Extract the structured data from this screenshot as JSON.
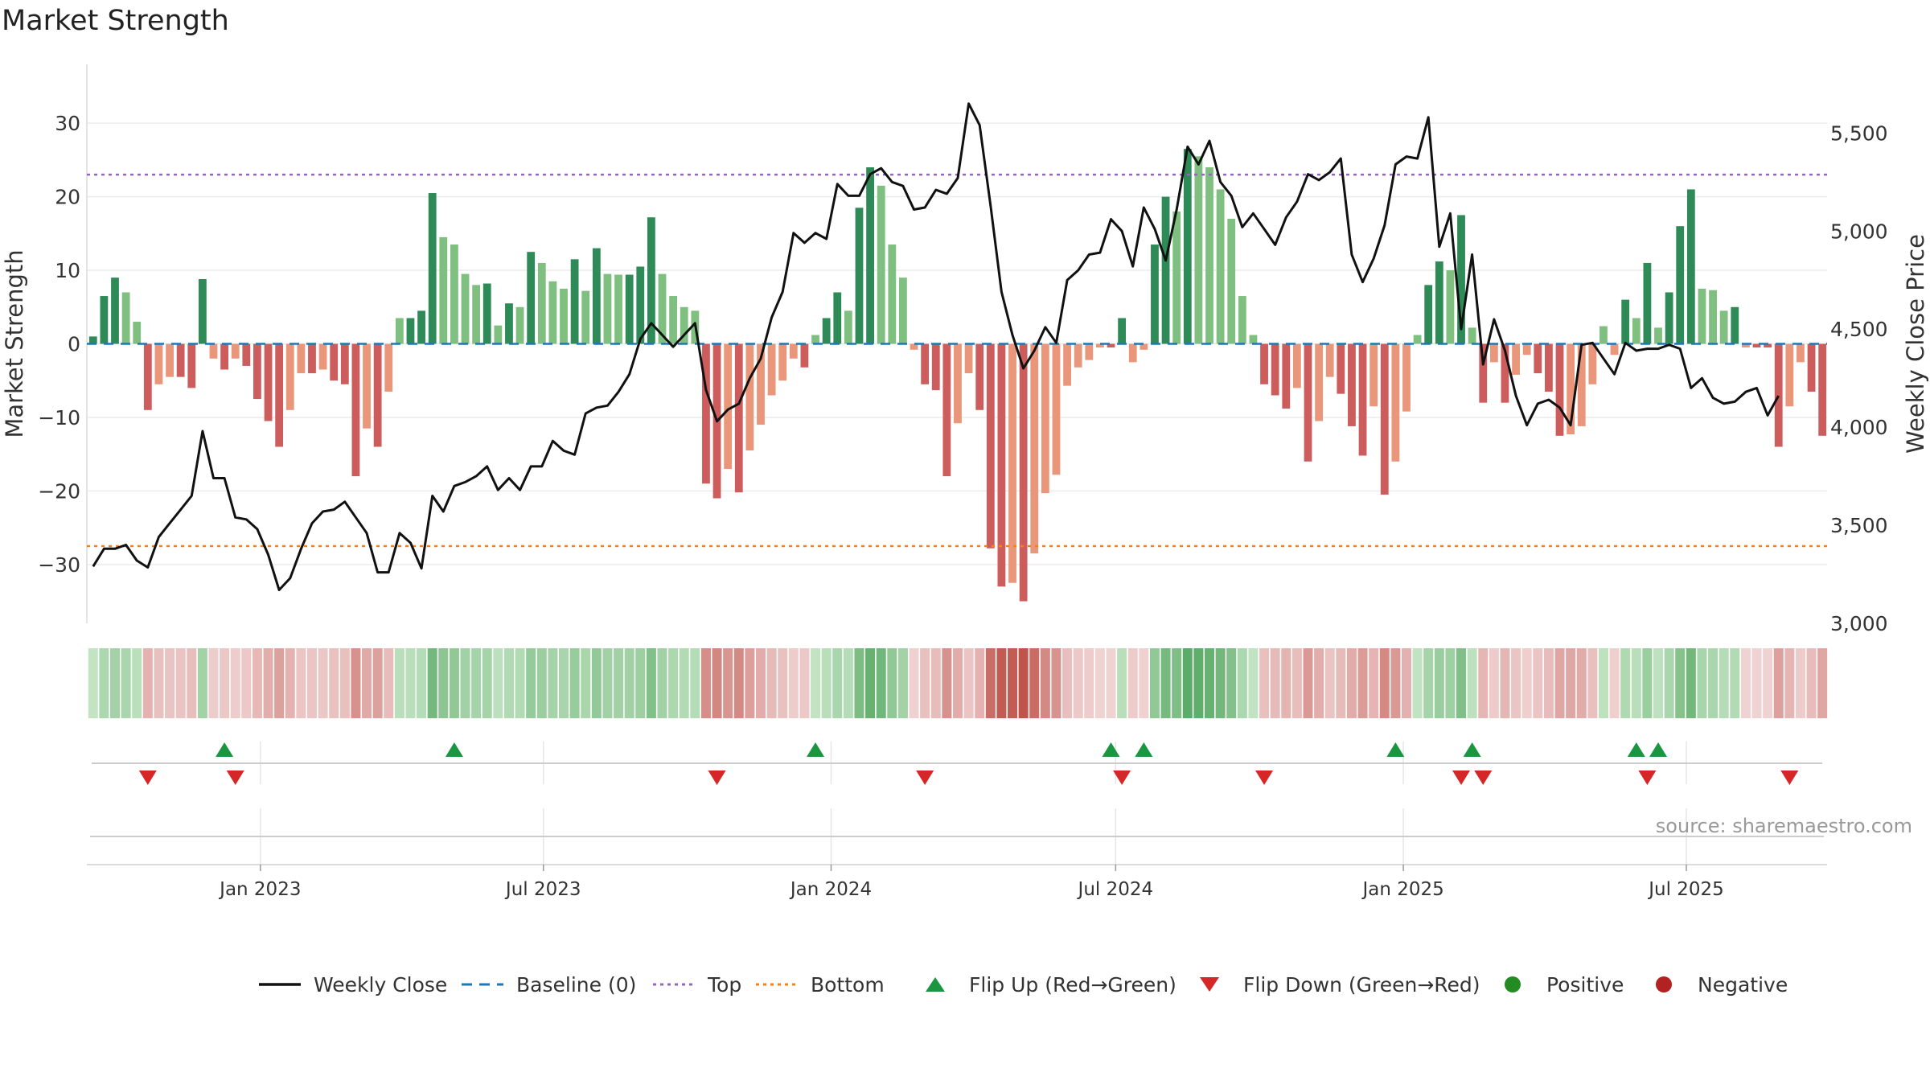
{
  "title": "Market Strength",
  "source": "source: sharemaestro.com",
  "chart_data": {
    "type": "bar",
    "title": "Market Strength",
    "xlabel": "",
    "ylabel": "Market Strength",
    "y2label": "Weekly Close Price",
    "ylim": [
      -38,
      38
    ],
    "y2lim": [
      3000,
      5850
    ],
    "yticks": [
      30,
      20,
      10,
      0,
      -10,
      -20,
      -30
    ],
    "ytick_labels": [
      "30",
      "20",
      "10",
      "0",
      "−10",
      "−20",
      "−30"
    ],
    "y2ticks": [
      5500,
      5000,
      4500,
      4000,
      3500,
      3000
    ],
    "y2tick_labels": [
      "5,500",
      "5,000",
      "4,500",
      "4,000",
      "3,500",
      "3,000"
    ],
    "xlim": [
      "2022-09-12",
      "2025-09-29"
    ],
    "xticks": [
      "2023-01-01",
      "2023-07-01",
      "2024-01-01",
      "2024-07-01",
      "2025-01-01",
      "2025-07-01"
    ],
    "xtick_labels": [
      "Jan 2023",
      "Jul 2023",
      "Jan 2024",
      "Jul 2024",
      "Jan 2025",
      "Jul 2025"
    ],
    "start_date": "2022-09-16",
    "period_days": 7,
    "top_line": 23,
    "bottom_line": -27.5,
    "grid": true,
    "legend_position": "bottom",
    "colors": {
      "green_dark": "#2e8b57",
      "green_light": "#7fbf7f",
      "red_dark": "#cd5c5c",
      "red_light": "#e9967a",
      "close": "#111111",
      "baseline": "#1f77b4",
      "top": "#9467bd",
      "bottom": "#ff7f0e",
      "flip_up": "#1a9641",
      "flip_down": "#d62728",
      "positive": "#228b22",
      "negative": "#b22222"
    },
    "strength": [
      1,
      6.5,
      9,
      7,
      3,
      -9,
      -5.5,
      -4.5,
      -4.5,
      -6,
      8.8,
      -2,
      -3.5,
      -2,
      -3,
      -7.5,
      -10.5,
      -14,
      -9,
      -4,
      -4,
      -3.5,
      -5,
      -5.5,
      -18,
      -11.5,
      -14,
      -6.5,
      3.5,
      3.5,
      4.5,
      20.5,
      14.5,
      13.5,
      9.5,
      8,
      8.2,
      2.5,
      5.5,
      5,
      12.5,
      11,
      8.5,
      7.5,
      11.5,
      7.2,
      13,
      9.5,
      9.4,
      9.4,
      10.5,
      17.2,
      9.5,
      6.5,
      5,
      4.5,
      -19,
      -21,
      -17,
      -20.2,
      -14.5,
      -11,
      -7,
      -5,
      -2,
      -3.2,
      1.2,
      3.5,
      7,
      4.5,
      18.5,
      24,
      21.5,
      13.5,
      9,
      -0.8,
      -5.5,
      -6.3,
      -18,
      -10.8,
      -4,
      -9,
      -27.8,
      -33,
      -32.5,
      -35,
      -28.5,
      -20.3,
      -17.8,
      -5.7,
      -3.2,
      -2.2,
      -0.5,
      -0.5,
      3.5,
      -2.5,
      -0.8,
      13.5,
      20,
      18,
      26.5,
      25.5,
      24,
      21,
      17,
      6.5,
      1.2,
      -5.5,
      -7,
      -8.8,
      -6,
      -16,
      -10.5,
      -4.5,
      -6.8,
      -11.2,
      -15.2,
      -8.5,
      -20.5,
      -16,
      -9.2,
      1.2,
      8,
      11.2,
      10,
      17.5,
      2.2,
      -8,
      -2.5,
      -8,
      -4.2,
      -1.5,
      -4,
      -6.5,
      -12.5,
      -12.3,
      -11.2,
      -5.5,
      2.4,
      -1.5,
      6,
      3.5,
      11,
      2.2,
      7,
      16,
      21,
      7.5,
      7.3,
      4.5,
      5,
      -0.5,
      -0.5,
      -0.5,
      -14,
      -8.5,
      -2.5,
      -6.5,
      -12.5
    ],
    "weekly_close": [
      3290,
      3380,
      3380,
      3400,
      3320,
      3285,
      3440,
      3510,
      3580,
      3650,
      3980,
      3740,
      3740,
      3540,
      3530,
      3480,
      3350,
      3170,
      3230,
      3380,
      3510,
      3570,
      3580,
      3620,
      3540,
      3460,
      3260,
      3260,
      3460,
      3410,
      3280,
      3650,
      3570,
      3700,
      3720,
      3750,
      3800,
      3680,
      3740,
      3680,
      3800,
      3800,
      3930,
      3880,
      3860,
      4070,
      4100,
      4110,
      4180,
      4270,
      4450,
      4530,
      4470,
      4410,
      4470,
      4530,
      4190,
      4030,
      4090,
      4120,
      4250,
      4350,
      4560,
      4690,
      4990,
      4940,
      4990,
      4960,
      5240,
      5180,
      5180,
      5290,
      5320,
      5250,
      5230,
      5110,
      5120,
      5210,
      5190,
      5270,
      5650,
      5540,
      5130,
      4690,
      4470,
      4300,
      4390,
      4510,
      4430,
      4750,
      4800,
      4880,
      4890,
      5060,
      5000,
      4820,
      5120,
      5010,
      4850,
      5110,
      5430,
      5340,
      5460,
      5250,
      5180,
      5020,
      5090,
      5010,
      4930,
      5070,
      5150,
      5290,
      5260,
      5300,
      5370,
      4880,
      4740,
      4860,
      5030,
      5340,
      5380,
      5370,
      5580,
      4920,
      5090,
      4500,
      4880,
      4320,
      4550,
      4390,
      4160,
      4010,
      4120,
      4140,
      4100,
      4010,
      4420,
      4430,
      4350,
      4270,
      4430,
      4390,
      4400,
      4400,
      4420,
      4400,
      4200,
      4250,
      4150,
      4120,
      4130,
      4180,
      4200,
      4060,
      4160
    ]
  },
  "flips_up": [
    "2022-12-09",
    "2023-05-05",
    "2023-12-22",
    "2024-06-28",
    "2024-07-19",
    "2024-12-27",
    "2025-02-14",
    "2025-05-30",
    "2025-06-13"
  ],
  "flips_down": [
    "2022-10-21",
    "2022-12-16",
    "2023-10-20",
    "2024-03-01",
    "2024-07-05",
    "2024-10-04",
    "2025-02-07",
    "2025-02-21",
    "2025-06-06",
    "2025-09-05"
  ],
  "legend": [
    {
      "label": "Weekly Close",
      "kind": "line",
      "color": "#111111"
    },
    {
      "label": "Baseline (0)",
      "kind": "dash",
      "color": "#1f77b4"
    },
    {
      "label": "Top",
      "kind": "dot",
      "color": "#9467bd"
    },
    {
      "label": "Bottom",
      "kind": "dot",
      "color": "#ff7f0e"
    },
    {
      "label": "Flip Up (Red→Green)",
      "kind": "tri-up",
      "color": "#1a9641"
    },
    {
      "label": "Flip Down (Green→Red)",
      "kind": "tri-down",
      "color": "#d62728"
    },
    {
      "label": "Positive",
      "kind": "circle",
      "color": "#228b22"
    },
    {
      "label": "Negative",
      "kind": "circle",
      "color": "#b22222"
    }
  ]
}
